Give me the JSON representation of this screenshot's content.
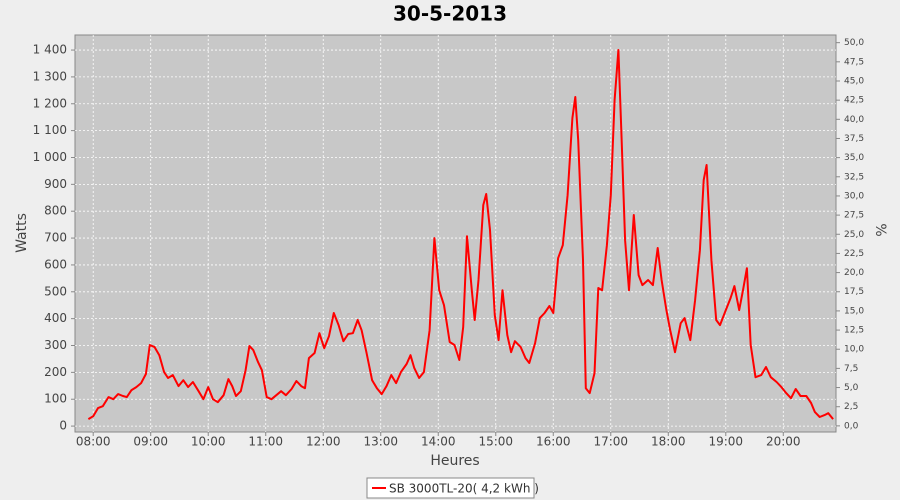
{
  "chart_data": {
    "type": "line",
    "title": "30-5-2013",
    "x_label": "Heures",
    "y_label": "Watts",
    "y2_label": "%",
    "x": [
      "07:55",
      "08:00",
      "08:05",
      "08:10",
      "08:16",
      "08:21",
      "08:26",
      "08:31",
      "08:35",
      "08:40",
      "08:45",
      "08:50",
      "08:55",
      "08:59",
      "09:04",
      "09:09",
      "09:14",
      "09:18",
      "09:23",
      "09:29",
      "09:34",
      "09:39",
      "09:44",
      "09:50",
      "09:55",
      "10:00",
      "10:05",
      "10:10",
      "10:16",
      "10:21",
      "10:25",
      "10:29",
      "10:34",
      "10:39",
      "10:43",
      "10:47",
      "10:52",
      "10:56",
      "11:01",
      "11:06",
      "11:11",
      "11:16",
      "11:21",
      "11:27",
      "11:32",
      "11:37",
      "11:41",
      "11:45",
      "11:51",
      "11:56",
      "12:01",
      "12:06",
      "12:11",
      "12:16",
      "12:21",
      "12:26",
      "12:31",
      "12:36",
      "12:40",
      "12:45",
      "12:51",
      "12:56",
      "13:01",
      "13:06",
      "13:11",
      "13:16",
      "13:21",
      "13:27",
      "13:31",
      "13:35",
      "13:40",
      "13:45",
      "13:51",
      "13:56",
      "14:01",
      "14:06",
      "14:12",
      "14:17",
      "14:22",
      "14:26",
      "14:30",
      "14:35",
      "14:38",
      "14:42",
      "14:47",
      "14:50",
      "14:54",
      "14:59",
      "15:03",
      "15:07",
      "15:12",
      "15:16",
      "15:20",
      "15:26",
      "15:31",
      "15:35",
      "15:41",
      "15:46",
      "15:51",
      "15:56",
      "16:00",
      "16:05",
      "16:10",
      "16:15",
      "16:20",
      "16:23",
      "16:26",
      "16:31",
      "16:34",
      "16:38",
      "16:43",
      "16:47",
      "16:51",
      "16:56",
      "17:00",
      "17:04",
      "17:08",
      "17:11",
      "17:15",
      "17:19",
      "17:24",
      "17:29",
      "17:33",
      "17:39",
      "17:44",
      "17:49",
      "17:53",
      "17:58",
      "18:02",
      "18:07",
      "18:13",
      "18:17",
      "18:23",
      "18:28",
      "18:33",
      "18:37",
      "18:40",
      "18:45",
      "18:50",
      "18:54",
      "19:00",
      "19:05",
      "19:09",
      "19:14",
      "19:18",
      "19:22",
      "19:26",
      "19:31",
      "19:37",
      "19:42",
      "19:47",
      "19:53",
      "19:58",
      "20:03",
      "20:08",
      "20:13",
      "20:18",
      "20:24",
      "20:29",
      "20:33",
      "20:38",
      "20:43",
      "20:47",
      "20:52"
    ],
    "series": [
      {
        "name": "SB 3000TL-20( 4,2 kWh )",
        "color": "#ff0000",
        "values": [
          26,
          37,
          67,
          74,
          108,
          100,
          119,
          112,
          108,
          134,
          145,
          160,
          194,
          302,
          294,
          264,
          201,
          179,
          190,
          149,
          171,
          145,
          164,
          130,
          100,
          145,
          100,
          89,
          115,
          175,
          149,
          112,
          130,
          208,
          298,
          283,
          238,
          208,
          108,
          100,
          115,
          130,
          115,
          138,
          168,
          149,
          141,
          253,
          272,
          346,
          290,
          335,
          421,
          376,
          316,
          343,
          346,
          395,
          357,
          275,
          171,
          141,
          119,
          149,
          190,
          160,
          201,
          231,
          264,
          216,
          179,
          201,
          357,
          700,
          506,
          450,
          313,
          302,
          246,
          369,
          707,
          506,
          395,
          544,
          823,
          864,
          730,
          413,
          320,
          506,
          339,
          275,
          316,
          294,
          253,
          235,
          309,
          402,
          421,
          447,
          421,
          625,
          674,
          860,
          1147,
          1225,
          1065,
          618,
          141,
          123,
          197,
          514,
          506,
          674,
          860,
          1214,
          1400,
          1102,
          692,
          506,
          786,
          562,
          525,
          544,
          525,
          663,
          544,
          432,
          357,
          275,
          383,
          402,
          320,
          469,
          655,
          916,
          972,
          618,
          395,
          376,
          432,
          477,
          521,
          432,
          506,
          588,
          302,
          182,
          190,
          220,
          182,
          164,
          145,
          123,
          104,
          138,
          112,
          112,
          86,
          52,
          34,
          41,
          48,
          26
        ]
      }
    ],
    "xlim": [
      "07:41",
      "20:55"
    ],
    "xticks": [
      "08:00",
      "09:00",
      "10:00",
      "11:00",
      "12:00",
      "13:00",
      "14:00",
      "15:00",
      "16:00",
      "17:00",
      "18:00",
      "19:00",
      "20:00"
    ],
    "ylim": [
      -22,
      1456
    ],
    "yticks": [
      0,
      100,
      200,
      300,
      400,
      500,
      600,
      700,
      800,
      900,
      {
        "value": 1000,
        "label": "1 000"
      },
      {
        "value": 1100,
        "label": "1 100"
      },
      {
        "value": 1200,
        "label": "1 200"
      },
      {
        "value": 1300,
        "label": "1 300"
      },
      {
        "value": 1400,
        "label": "1 400"
      }
    ],
    "y2lim": [
      -0.8,
      51.0
    ],
    "y2ticks": [
      {
        "value": 0,
        "label": "0,0"
      },
      {
        "value": 2.5,
        "label": "2,5"
      },
      {
        "value": 5,
        "label": "5,0"
      },
      {
        "value": 7.5,
        "label": "7,5"
      },
      {
        "value": 10,
        "label": "10,0"
      },
      {
        "value": 12.5,
        "label": "12,5"
      },
      {
        "value": 15,
        "label": "15,0"
      },
      {
        "value": 17.5,
        "label": "17,5"
      },
      {
        "value": 20,
        "label": "20,0"
      },
      {
        "value": 22.5,
        "label": "22,5"
      },
      {
        "value": 25,
        "label": "25,0"
      },
      {
        "value": 27.5,
        "label": "27,5"
      },
      {
        "value": 30,
        "label": "30,0"
      },
      {
        "value": 32.5,
        "label": "32,5"
      },
      {
        "value": 35,
        "label": "35,0"
      },
      {
        "value": 37.5,
        "label": "37,5"
      },
      {
        "value": 40,
        "label": "40,0"
      },
      {
        "value": 42.5,
        "label": "42,5"
      },
      {
        "value": 45,
        "label": "45,0"
      },
      {
        "value": 47.5,
        "label": "47,5"
      },
      {
        "value": 50,
        "label": "50,0"
      }
    ],
    "grid": true
  }
}
